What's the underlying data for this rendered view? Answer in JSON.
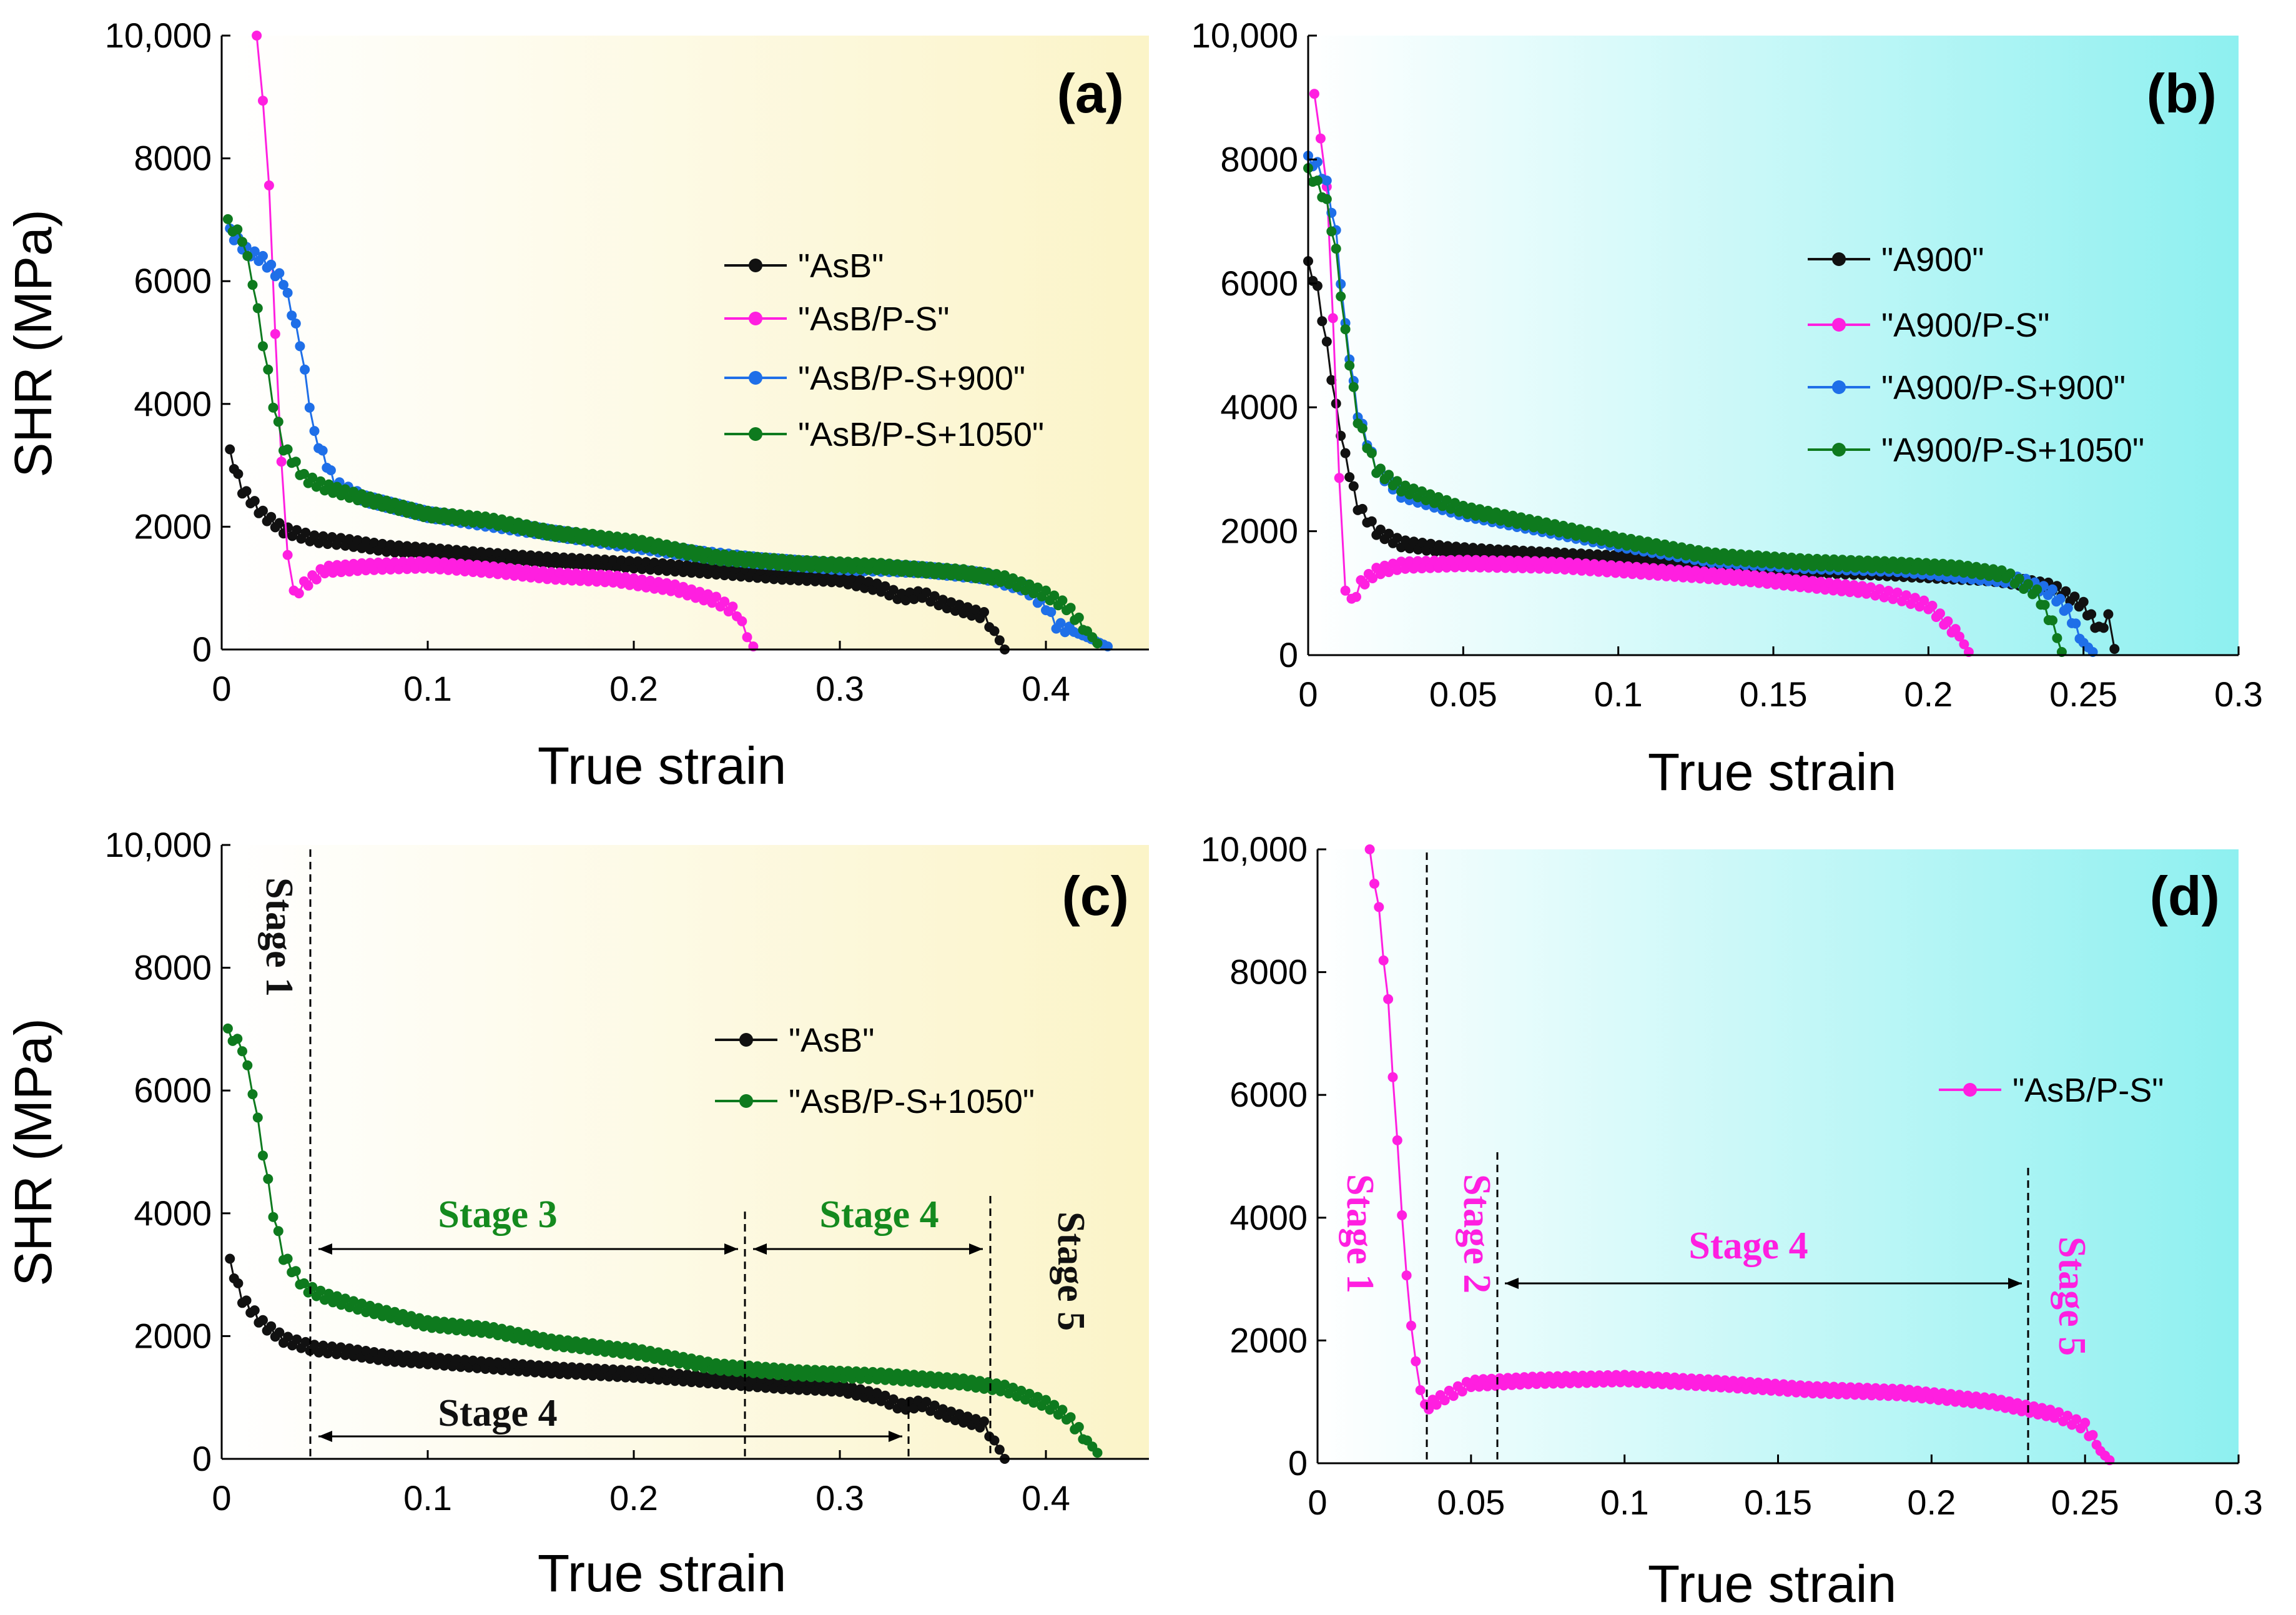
{
  "chart_data": [
    {
      "id": "a",
      "type": "scatter",
      "panel_label": "(a)",
      "xlabel": "True strain",
      "ylabel": "SHR (MPa)",
      "xlim": [
        0,
        0.45
      ],
      "ylim": [
        0,
        10000
      ],
      "xticks": [
        "0",
        "0.1",
        "0.2",
        "0.3",
        "0.4"
      ],
      "yticks": [
        "0",
        "2000",
        "4000",
        "6000",
        "8000",
        "10,000"
      ],
      "background": {
        "from": "#ffffff",
        "to": "#fbf4c8"
      },
      "legend_position": "center-right",
      "series": [
        {
          "name": "\"AsB\"",
          "color": "#111111",
          "x": [
            0.004,
            0.01,
            0.02,
            0.03,
            0.045,
            0.06,
            0.08,
            0.1,
            0.13,
            0.16,
            0.2,
            0.24,
            0.27,
            0.3,
            0.32,
            0.33,
            0.34,
            0.35,
            0.36,
            0.37,
            0.375,
            0.38
          ],
          "y": [
            3200,
            2600,
            2200,
            1950,
            1800,
            1750,
            1650,
            1600,
            1520,
            1450,
            1380,
            1280,
            1200,
            1150,
            1000,
            850,
            900,
            750,
            650,
            550,
            300,
            0
          ]
        },
        {
          "name": "\"AsB/P-S\"",
          "color": "#ff1fe0",
          "x": [
            0.017,
            0.02,
            0.023,
            0.026,
            0.029,
            0.032,
            0.035,
            0.04,
            0.05,
            0.07,
            0.1,
            0.13,
            0.16,
            0.19,
            0.22,
            0.24,
            0.25,
            0.255,
            0.258
          ],
          "y": [
            10000,
            9000,
            7500,
            5200,
            3000,
            1600,
            900,
            1050,
            1300,
            1350,
            1380,
            1300,
            1200,
            1150,
            1000,
            800,
            600,
            200,
            50
          ]
        },
        {
          "name": "\"AsB/P-S+900\"",
          "color": "#1f6fe8",
          "x": [
            0.004,
            0.012,
            0.02,
            0.03,
            0.038,
            0.045,
            0.055,
            0.07,
            0.1,
            0.14,
            0.18,
            0.22,
            0.26,
            0.3,
            0.34,
            0.37,
            0.39,
            0.4,
            0.405,
            0.42,
            0.43
          ],
          "y": [
            6800,
            6500,
            6350,
            6000,
            5000,
            3500,
            2700,
            2450,
            2200,
            2000,
            1800,
            1600,
            1450,
            1350,
            1300,
            1200,
            1000,
            700,
            400,
            200,
            50
          ]
        },
        {
          "name": "\"AsB/P-S+1050\"",
          "color": "#0e7a1e",
          "x": [
            0.003,
            0.01,
            0.015,
            0.02,
            0.025,
            0.03,
            0.04,
            0.05,
            0.07,
            0.1,
            0.13,
            0.16,
            0.2,
            0.24,
            0.28,
            0.32,
            0.36,
            0.38,
            0.4,
            0.41,
            0.42,
            0.425
          ],
          "y": [
            6950,
            6700,
            6000,
            5000,
            4000,
            3300,
            2800,
            2650,
            2450,
            2200,
            2100,
            1900,
            1750,
            1500,
            1400,
            1350,
            1250,
            1150,
            900,
            700,
            300,
            100
          ]
        }
      ]
    },
    {
      "id": "b",
      "type": "scatter",
      "panel_label": "(b)",
      "xlabel": "True strain",
      "ylabel": "",
      "xlim": [
        0,
        0.3
      ],
      "ylim": [
        0,
        10000
      ],
      "xticks": [
        "0",
        "0.05",
        "0.1",
        "0.15",
        "0.2",
        "0.25",
        "0.3"
      ],
      "yticks": [
        "0",
        "2000",
        "4000",
        "6000",
        "8000",
        "10,000"
      ],
      "background": {
        "from": "#ffffff",
        "to": "#8ef0f0"
      },
      "legend_position": "center-right",
      "series": [
        {
          "name": "\"A900\"",
          "color": "#111111",
          "x": [
            0.0,
            0.003,
            0.006,
            0.009,
            0.012,
            0.016,
            0.022,
            0.03,
            0.045,
            0.06,
            0.08,
            0.1,
            0.12,
            0.15,
            0.18,
            0.2,
            0.22,
            0.24,
            0.25,
            0.255,
            0.258,
            0.26
          ],
          "y": [
            6300,
            5900,
            5000,
            4000,
            3200,
            2400,
            2000,
            1800,
            1700,
            1650,
            1600,
            1550,
            1500,
            1400,
            1350,
            1300,
            1250,
            1100,
            800,
            400,
            600,
            100
          ]
        },
        {
          "name": "\"A900/P-S\"",
          "color": "#ff1fe0",
          "x": [
            0.002,
            0.004,
            0.006,
            0.008,
            0.01,
            0.012,
            0.014,
            0.017,
            0.022,
            0.03,
            0.05,
            0.08,
            0.11,
            0.14,
            0.16,
            0.18,
            0.19,
            0.2,
            0.205,
            0.21,
            0.213
          ],
          "y": [
            9000,
            8400,
            7500,
            5500,
            2800,
            1100,
            850,
            1150,
            1350,
            1450,
            1480,
            1450,
            1350,
            1250,
            1150,
            1050,
            950,
            800,
            550,
            300,
            50
          ]
        },
        {
          "name": "\"A900/P-S+900\"",
          "color": "#1f6fe8",
          "x": [
            0.0,
            0.003,
            0.006,
            0.009,
            0.012,
            0.016,
            0.022,
            0.03,
            0.05,
            0.07,
            0.1,
            0.13,
            0.16,
            0.19,
            0.21,
            0.23,
            0.24,
            0.245,
            0.25,
            0.253
          ],
          "y": [
            8000,
            7900,
            7600,
            6800,
            5300,
            3900,
            3000,
            2600,
            2300,
            2100,
            1800,
            1550,
            1450,
            1400,
            1300,
            1200,
            1000,
            700,
            200,
            50
          ]
        },
        {
          "name": "\"A900/P-S+1050\"",
          "color": "#0e7a1e",
          "x": [
            0.0,
            0.003,
            0.006,
            0.009,
            0.012,
            0.016,
            0.022,
            0.03,
            0.05,
            0.07,
            0.1,
            0.13,
            0.16,
            0.19,
            0.21,
            0.225,
            0.235,
            0.24,
            0.243
          ],
          "y": [
            7800,
            7600,
            7300,
            6500,
            5200,
            3800,
            3000,
            2700,
            2350,
            2150,
            1850,
            1600,
            1500,
            1450,
            1400,
            1300,
            1000,
            500,
            50
          ]
        }
      ]
    },
    {
      "id": "c",
      "type": "scatter",
      "panel_label": "(c)",
      "xlabel": "True strain",
      "ylabel": "SHR (MPa)",
      "xlim": [
        0,
        0.45
      ],
      "ylim": [
        0,
        10000
      ],
      "xticks": [
        "0",
        "0.1",
        "0.2",
        "0.3",
        "0.4"
      ],
      "yticks": [
        "0",
        "2000",
        "4000",
        "6000",
        "8000",
        "10,000"
      ],
      "background": {
        "from": "#ffffff",
        "to": "#fbf4c8"
      },
      "legend_position": "upper-right",
      "series": [
        {
          "name": "\"AsB\"",
          "color": "#111111",
          "x": [
            0.004,
            0.01,
            0.02,
            0.03,
            0.045,
            0.06,
            0.08,
            0.1,
            0.13,
            0.16,
            0.2,
            0.24,
            0.27,
            0.3,
            0.32,
            0.33,
            0.34,
            0.35,
            0.36,
            0.37,
            0.375,
            0.38
          ],
          "y": [
            3200,
            2600,
            2200,
            1950,
            1800,
            1750,
            1650,
            1600,
            1520,
            1450,
            1380,
            1280,
            1200,
            1150,
            1000,
            850,
            900,
            750,
            650,
            550,
            300,
            0
          ]
        },
        {
          "name": "\"AsB/P-S+1050\"",
          "color": "#0e7a1e",
          "x": [
            0.003,
            0.01,
            0.015,
            0.02,
            0.025,
            0.03,
            0.04,
            0.05,
            0.07,
            0.1,
            0.13,
            0.16,
            0.2,
            0.24,
            0.28,
            0.32,
            0.36,
            0.38,
            0.4,
            0.41,
            0.42,
            0.425
          ],
          "y": [
            6950,
            6700,
            6000,
            5000,
            4000,
            3300,
            2800,
            2650,
            2450,
            2200,
            2100,
            1900,
            1750,
            1500,
            1400,
            1350,
            1250,
            1150,
            900,
            700,
            300,
            100
          ]
        }
      ],
      "stage_lines": [
        0.042,
        0.254,
        0.373,
        0.333
      ],
      "annotations": [
        {
          "text": "Stage 1",
          "color": "#111111"
        },
        {
          "text": "Stage 3",
          "color": "#148a1e"
        },
        {
          "text": "Stage 4",
          "color": "#148a1e"
        },
        {
          "text": "Stage 5",
          "color": "#111111"
        },
        {
          "text": "Stage 4",
          "color": "#111111"
        }
      ]
    },
    {
      "id": "d",
      "type": "scatter",
      "panel_label": "(d)",
      "xlabel": "True strain",
      "ylabel": "",
      "xlim": [
        0,
        0.3
      ],
      "ylim": [
        0,
        10000
      ],
      "xticks": [
        "0",
        "0.05",
        "0.1",
        "0.15",
        "0.2",
        "0.25",
        "0.3"
      ],
      "yticks": [
        "0",
        "2000",
        "4000",
        "6000",
        "8000",
        "10,000"
      ],
      "background": {
        "from": "#ffffff",
        "to": "#8ef0f0"
      },
      "legend_position": "upper-right",
      "series": [
        {
          "name": "\"AsB/P-S\"",
          "color": "#ff1fe0",
          "x": [
            0.017,
            0.02,
            0.023,
            0.026,
            0.029,
            0.032,
            0.035,
            0.04,
            0.05,
            0.07,
            0.1,
            0.13,
            0.16,
            0.19,
            0.22,
            0.24,
            0.25,
            0.255,
            0.258
          ],
          "y": [
            10000,
            9000,
            7500,
            5200,
            3000,
            1600,
            900,
            1050,
            1300,
            1350,
            1380,
            1300,
            1200,
            1150,
            1000,
            800,
            600,
            200,
            50
          ]
        }
      ],
      "stage_lines": [
        0.035,
        0.058,
        0.229
      ],
      "annotations": [
        {
          "text": "Stage 1",
          "color": "#ff1fe0"
        },
        {
          "text": "Stage 2",
          "color": "#ff1fe0"
        },
        {
          "text": "Stage 4",
          "color": "#ff1fe0"
        },
        {
          "text": "Stage 5",
          "color": "#ff1fe0"
        }
      ]
    }
  ]
}
